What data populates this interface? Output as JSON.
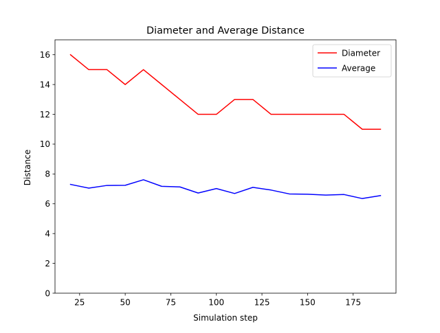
{
  "chart_data": {
    "type": "line",
    "title": "Diameter and Average Distance",
    "xlabel": "Simulation step",
    "ylabel": "Distance",
    "x": [
      20,
      30,
      40,
      50,
      60,
      70,
      80,
      90,
      100,
      110,
      120,
      130,
      140,
      150,
      160,
      170,
      180,
      190
    ],
    "series": [
      {
        "name": "Diameter",
        "color": "#ff0000",
        "values": [
          16,
          15,
          15,
          14,
          15,
          14,
          13,
          12,
          12,
          13,
          13,
          12,
          12,
          12,
          12,
          12,
          11,
          11
        ]
      },
      {
        "name": "Average",
        "color": "#0000ff",
        "values": [
          7.3,
          7.05,
          7.23,
          7.24,
          7.61,
          7.17,
          7.13,
          6.72,
          7.02,
          6.69,
          7.1,
          6.92,
          6.66,
          6.64,
          6.58,
          6.62,
          6.35,
          6.55
        ]
      }
    ],
    "xlim": [
      11.5,
      198.5
    ],
    "ylim": [
      0,
      17
    ],
    "xticks": [
      25,
      50,
      75,
      100,
      125,
      150,
      175
    ],
    "yticks": [
      0,
      2,
      4,
      6,
      8,
      10,
      12,
      14,
      16
    ],
    "grid": false,
    "legend_position": "top-right"
  }
}
